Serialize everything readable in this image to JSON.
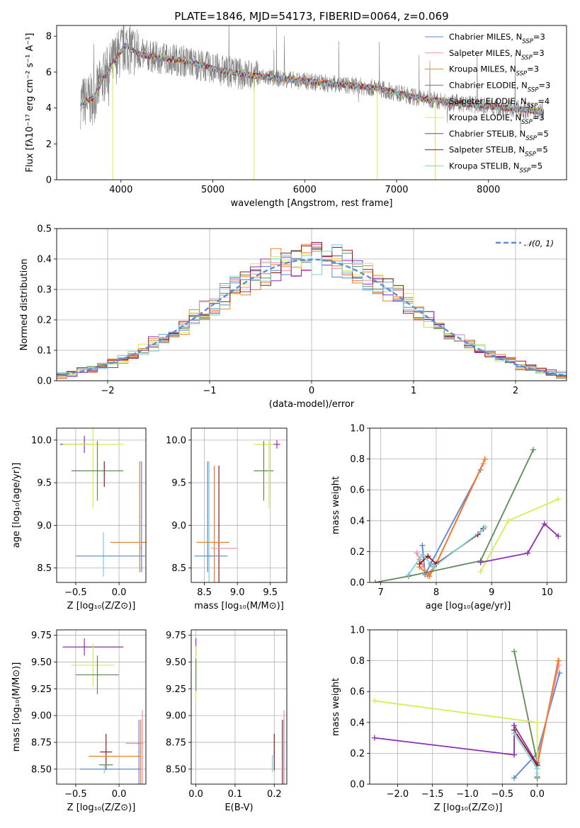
{
  "colors": {
    "chabrier_miles": "#5b84d6",
    "salpeter_miles": "#f08fa8",
    "kroupa_miles": "#e8852e",
    "chabrier_elodie": "#5e8a58",
    "salpeter_elodie": "#f07a28",
    "kroupa_elodie": "#d6ec55",
    "chabrier_stelib": "#8e2eb0",
    "salpeter_stelib": "#8f1c1c",
    "kroupa_stelib": "#7ad0dc",
    "data": "#808080"
  },
  "chart_data": [
    {
      "id": "spectrum",
      "type": "line",
      "title": "PLATE=1846, MJD=54173, FIBERID=0064, z=0.069",
      "xlabel": "wavelength [Angstrom, rest frame]",
      "ylabel": "Flux [fλ10⁻¹⁷ erg cm⁻² s⁻¹ A⁻¹]",
      "xlim": [
        3300,
        8850
      ],
      "ylim": [
        0,
        8.6
      ],
      "xticks": [
        "4000",
        "5000",
        "6000",
        "7000",
        "8000"
      ],
      "yticks": [
        "0",
        "2",
        "4",
        "6",
        "8"
      ],
      "legend_position": "top-right",
      "legend": [
        {
          "main": "Chabrier MILES, N",
          "sub": "SSP",
          "tail": "=3"
        },
        {
          "main": "Salpeter MILES, N",
          "sub": "SSP",
          "tail": "=3"
        },
        {
          "main": "Kroupa MILES, N",
          "sub": "SSP",
          "tail": "=3"
        },
        {
          "main": "Chabrier ELODIE, N",
          "sub": "SSP",
          "tail": "=3"
        },
        {
          "main": "Salpeter ELODIE, N",
          "sub": "SSP",
          "tail": "=4"
        },
        {
          "main": "Kroupa ELODIE, N",
          "sub": "SSP",
          "tail": "=3"
        },
        {
          "main": "Chabrier STELIB, N",
          "sub": "SSP",
          "tail": "=5"
        },
        {
          "main": "Salpeter STELIB, N",
          "sub": "SSP",
          "tail": "=5"
        },
        {
          "main": "Kroupa STELIB, N",
          "sub": "SSP",
          "tail": "=5"
        }
      ],
      "model_continuum": {
        "x": [
          3550,
          3700,
          3800,
          3950,
          4050,
          4200,
          4400,
          4600,
          4800,
          5000,
          5300,
          5600,
          6000,
          6400,
          6800,
          7200,
          7600,
          8000,
          8400,
          8600
        ],
        "y": [
          4.3,
          4.5,
          5.6,
          6.8,
          7.5,
          7.0,
          6.8,
          6.7,
          6.5,
          6.2,
          5.9,
          5.7,
          5.5,
          5.3,
          5.1,
          4.6,
          4.3,
          4.1,
          3.9,
          3.8
        ]
      }
    },
    {
      "id": "residual_hist",
      "type": "line",
      "xlabel": "(data-model)/error",
      "ylabel": "Normed distribution",
      "xlim": [
        -2.5,
        2.5
      ],
      "ylim": [
        0,
        0.5
      ],
      "xticks": [
        "−2",
        "−1",
        "0",
        "1",
        "2"
      ],
      "yticks": [
        "0.0",
        "0.1",
        "0.2",
        "0.3",
        "0.4",
        "0.5"
      ],
      "legend_position": "top-right",
      "legend": "𝒩(0, 1)"
    },
    {
      "id": "age_vs_Z",
      "type": "scatter",
      "xlabel": "Z [log₁₀(Z/Z⊙)]",
      "ylabel": "age  [log₁₀(age/yr)]",
      "xlim": [
        -0.72,
        0.31
      ],
      "ylim": [
        8.33,
        10.14
      ],
      "xticks": [
        "−0.5",
        "0.0"
      ],
      "yticks": [
        "8.5",
        "9.0",
        "9.5",
        "10.0"
      ],
      "points": [
        {
          "m": "chabrier_stelib",
          "x": -0.5,
          "y": 9.95,
          "xe": 0.18,
          "ye": 0.0
        },
        {
          "m": "chabrier_stelib",
          "x": -0.4,
          "y": 9.95,
          "xe": 0.0,
          "ye": 0.1
        },
        {
          "m": "kroupa_elodie",
          "x": -0.3,
          "y": 9.95,
          "xe": 0.35,
          "ye": 0.75
        },
        {
          "m": "chabrier_elodie",
          "x": -0.25,
          "y": 9.64,
          "xe": 0.3,
          "ye": 0.35
        },
        {
          "m": "salpeter_stelib",
          "x": -0.17,
          "y": 9.6,
          "xe": 0.0,
          "ye": 0.15
        },
        {
          "m": "kroupa_stelib",
          "x": -0.18,
          "y": 8.66,
          "xe": 0.0,
          "ye": 0.26
        },
        {
          "m": "chabrier_miles",
          "x": -0.1,
          "y": 8.64,
          "xe": 0.4,
          "ye": 0.0
        },
        {
          "m": "salpeter_miles",
          "x": 0.25,
          "y": 8.73,
          "xe": 0.0,
          "ye": 0.0
        },
        {
          "m": "kroupa_miles",
          "x": 0.18,
          "y": 8.8,
          "xe": 0.28,
          "ye": 0.0
        },
        {
          "m": "salpeter_elodie",
          "x": 0.24,
          "y": 9.1,
          "xe": 0.0,
          "ye": 0.65
        },
        {
          "m": "chabrier_miles",
          "x": 0.26,
          "y": 9.1,
          "xe": 0.0,
          "ye": 0.65
        }
      ]
    },
    {
      "id": "age_vs_mass",
      "type": "scatter",
      "xlabel": "mass [log₁₀(M/M⊙)]",
      "ylabel": "",
      "xlim": [
        8.3,
        9.75
      ],
      "ylim": [
        8.33,
        10.14
      ],
      "xticks": [
        "8.5",
        "9.0",
        "9.5"
      ],
      "yticks": [
        "8.5",
        "9.0",
        "9.5",
        "10.0"
      ],
      "points": [
        {
          "m": "kroupa_elodie",
          "x": 9.45,
          "y": 9.95,
          "xe": 0.2,
          "ye": 0.0
        },
        {
          "m": "chabrier_stelib",
          "x": 9.6,
          "y": 9.95,
          "xe": 0.05,
          "ye": 0.05
        },
        {
          "m": "chabrier_elodie",
          "x": 9.4,
          "y": 9.64,
          "xe": 0.15,
          "ye": 0.35
        },
        {
          "m": "kroupa_elodie",
          "x": 9.48,
          "y": 9.6,
          "xe": 0.0,
          "ye": 0.4
        },
        {
          "m": "chabrier_miles",
          "x": 8.55,
          "y": 9.1,
          "xe": 0.0,
          "ye": 0.65
        },
        {
          "m": "kroupa_stelib",
          "x": 8.57,
          "y": 9.0,
          "xe": 0.0,
          "ye": 0.75
        },
        {
          "m": "salpeter_elodie",
          "x": 8.65,
          "y": 9.0,
          "xe": 0.0,
          "ye": 0.7
        },
        {
          "m": "salpeter_stelib",
          "x": 8.72,
          "y": 9.0,
          "xe": 0.0,
          "ye": 0.7
        },
        {
          "m": "kroupa_miles",
          "x": 8.63,
          "y": 8.8,
          "xe": 0.25,
          "ye": 0.0
        },
        {
          "m": "salpeter_miles",
          "x": 8.8,
          "y": 8.73,
          "xe": 0.2,
          "ye": 0.0
        },
        {
          "m": "chabrier_miles",
          "x": 8.6,
          "y": 8.64,
          "xe": 0.25,
          "ye": 0.0
        }
      ]
    },
    {
      "id": "weight_vs_age",
      "type": "line",
      "xlabel": "age  [log₁₀(age/yr)]",
      "ylabel": "mass weight",
      "xlim": [
        6.8,
        10.35
      ],
      "ylim": [
        0,
        1
      ],
      "xticks": [
        "7",
        "8",
        "9",
        "10"
      ],
      "yticks": [
        "0.0",
        "0.2",
        "0.4",
        "0.6",
        "0.8",
        "1.0"
      ],
      "series": [
        {
          "m": "chabrier_miles",
          "x": [
            7.75,
            7.8,
            7.9,
            8.8
          ],
          "y": [
            0.24,
            0.05,
            0.12,
            0.73
          ]
        },
        {
          "m": "kroupa_miles",
          "x": [
            7.7,
            7.85,
            8.0,
            8.88
          ],
          "y": [
            0.15,
            0.05,
            0.12,
            0.8
          ]
        },
        {
          "m": "salpeter_miles",
          "x": [
            7.65,
            7.85,
            8.0,
            8.85
          ],
          "y": [
            0.19,
            0.04,
            0.12,
            0.77
          ]
        },
        {
          "m": "salpeter_elodie",
          "x": [
            7.7,
            7.88,
            8.0,
            8.88
          ],
          "y": [
            0.1,
            0.04,
            0.12,
            0.8
          ]
        },
        {
          "m": "chabrier_elodie",
          "x": [
            6.9,
            7.5,
            8.8,
            9.75
          ],
          "y": [
            0.0,
            0.04,
            0.14,
            0.86
          ]
        },
        {
          "m": "kroupa_elodie",
          "x": [
            8.8,
            9.3,
            10.2
          ],
          "y": [
            0.07,
            0.4,
            0.54
          ]
        },
        {
          "m": "chabrier_stelib",
          "x": [
            8.8,
            9.65,
            9.95,
            10.2
          ],
          "y": [
            0.13,
            0.19,
            0.38,
            0.3
          ]
        },
        {
          "m": "salpeter_stelib",
          "x": [
            7.7,
            7.85,
            8.0,
            8.75,
            8.85
          ],
          "y": [
            0.12,
            0.17,
            0.12,
            0.31,
            0.35
          ]
        },
        {
          "m": "kroupa_stelib",
          "x": [
            7.5,
            7.75,
            7.95,
            8.8,
            8.88
          ],
          "y": [
            0.05,
            0.18,
            0.1,
            0.33,
            0.36
          ]
        }
      ]
    },
    {
      "id": "mass_vs_Z",
      "type": "scatter",
      "xlabel": "Z [log₁₀(Z/Z⊙)]",
      "ylabel": "mass [log₁₀(M/M⊙)]",
      "xlim": [
        -0.72,
        0.31
      ],
      "ylim": [
        8.36,
        9.8
      ],
      "xticks": [
        "−0.5",
        "0.0"
      ],
      "yticks": [
        "8.50",
        "8.75",
        "9.00",
        "9.25",
        "9.50",
        "9.75"
      ],
      "points": [
        {
          "m": "chabrier_stelib",
          "x": -0.3,
          "y": 9.64,
          "xe": 0.35,
          "ye": 0.0
        },
        {
          "m": "chabrier_stelib",
          "x": -0.4,
          "y": 9.64,
          "xe": 0.0,
          "ye": 0.08
        },
        {
          "m": "kroupa_elodie",
          "x": -0.3,
          "y": 9.47,
          "xe": 0.25,
          "ye": 0.2
        },
        {
          "m": "chabrier_elodie",
          "x": -0.25,
          "y": 9.38,
          "xe": 0.25,
          "ye": 0.18
        },
        {
          "m": "salpeter_stelib",
          "x": -0.15,
          "y": 8.66,
          "xe": 0.07,
          "ye": 0.17
        },
        {
          "m": "salpeter_miles",
          "x": 0.18,
          "y": 8.74,
          "xe": 0.1,
          "ye": 0.0
        },
        {
          "m": "kroupa_miles",
          "x": -0.05,
          "y": 8.62,
          "xe": 0.3,
          "ye": 0.0
        },
        {
          "m": "chabrier_elodie",
          "x": -0.15,
          "y": 8.54,
          "xe": 0.08,
          "ye": 0.0
        },
        {
          "m": "chabrier_miles",
          "x": -0.1,
          "y": 8.5,
          "xe": 0.35,
          "ye": 0.0
        },
        {
          "m": "kroupa_stelib",
          "x": -0.17,
          "y": 8.5,
          "xe": 0.0,
          "ye": 0.04
        },
        {
          "m": "salpeter_elodie",
          "x": 0.25,
          "y": 8.66,
          "xe": 0.0,
          "ye": 0.3
        },
        {
          "m": "chabrier_miles",
          "x": 0.23,
          "y": 8.66,
          "xe": 0.0,
          "ye": 0.3
        },
        {
          "m": "salpeter_miles",
          "x": 0.27,
          "y": 8.7,
          "xe": 0.0,
          "ye": 0.35
        }
      ]
    },
    {
      "id": "mass_vs_ebv",
      "type": "scatter",
      "xlabel": "E(B-V)",
      "ylabel": "",
      "xlim": [
        -0.012,
        0.232
      ],
      "ylim": [
        8.36,
        9.8
      ],
      "xticks": [
        "0.0",
        "0.1",
        "0.2"
      ],
      "yticks": [
        "8.50",
        "8.75",
        "9.00",
        "9.25",
        "9.50",
        "9.75"
      ],
      "points": [
        {
          "m": "chabrier_stelib",
          "x": 0.0,
          "y": 9.64,
          "xe": 0.0,
          "ye": 0.08
        },
        {
          "m": "kroupa_elodie",
          "x": 0.0,
          "y": 9.4,
          "xe": 0.0,
          "ye": 0.25
        },
        {
          "m": "chabrier_elodie",
          "x": 0.0,
          "y": 9.38,
          "xe": 0.0,
          "ye": 0.15
        },
        {
          "m": "salpeter_stelib",
          "x": 0.2,
          "y": 8.66,
          "xe": 0.0,
          "ye": 0.17
        },
        {
          "m": "kroupa_stelib",
          "x": 0.195,
          "y": 8.55,
          "xe": 0.0,
          "ye": 0.08
        },
        {
          "m": "salpeter_elodie",
          "x": 0.22,
          "y": 8.66,
          "xe": 0.0,
          "ye": 0.3
        },
        {
          "m": "chabrier_miles",
          "x": 0.222,
          "y": 8.66,
          "xe": 0.0,
          "ye": 0.3
        },
        {
          "m": "salpeter_miles",
          "x": 0.225,
          "y": 8.7,
          "xe": 0.0,
          "ye": 0.35
        }
      ]
    },
    {
      "id": "weight_vs_Z",
      "type": "line",
      "xlabel": "Z [log₁₀(Z/Z⊙)]",
      "ylabel": "mass weight",
      "xlim": [
        -2.4,
        0.42
      ],
      "ylim": [
        0,
        1
      ],
      "xticks": [
        "−2.0",
        "−1.5",
        "−1.0",
        "−0.5",
        "0.0"
      ],
      "yticks": [
        "0.0",
        "0.2",
        "0.4",
        "0.6",
        "0.8",
        "1.0"
      ],
      "series": [
        {
          "m": "chabrier_miles",
          "x": [
            -0.33,
            0.0,
            0.32
          ],
          "y": [
            0.04,
            0.2,
            0.72
          ]
        },
        {
          "m": "kroupa_miles",
          "x": [
            0.0,
            0.0,
            0.31
          ],
          "y": [
            0.04,
            0.12,
            0.8
          ]
        },
        {
          "m": "salpeter_miles",
          "x": [
            0.0,
            0.0,
            0.31
          ],
          "y": [
            0.05,
            0.15,
            0.77
          ]
        },
        {
          "m": "salpeter_elodie",
          "x": [
            0.0,
            0.0,
            0.3
          ],
          "y": [
            0.05,
            0.12,
            0.8
          ]
        },
        {
          "m": "chabrier_elodie",
          "x": [
            -0.33,
            0.0,
            0.0
          ],
          "y": [
            0.86,
            0.14,
            0.04
          ]
        },
        {
          "m": "kroupa_elodie",
          "x": [
            -2.33,
            0.0,
            0.0
          ],
          "y": [
            0.54,
            0.4,
            0.07
          ]
        },
        {
          "m": "chabrier_stelib",
          "x": [
            -2.33,
            -0.33,
            -0.33,
            0.0,
            0.0
          ],
          "y": [
            0.3,
            0.19,
            0.38,
            0.13,
            0.05
          ]
        },
        {
          "m": "salpeter_stelib",
          "x": [
            -0.33,
            0.0,
            0.0
          ],
          "y": [
            0.35,
            0.12,
            0.05
          ]
        },
        {
          "m": "kroupa_stelib",
          "x": [
            -0.33,
            0.0,
            0.0
          ],
          "y": [
            0.33,
            0.1,
            0.05
          ]
        }
      ]
    }
  ]
}
